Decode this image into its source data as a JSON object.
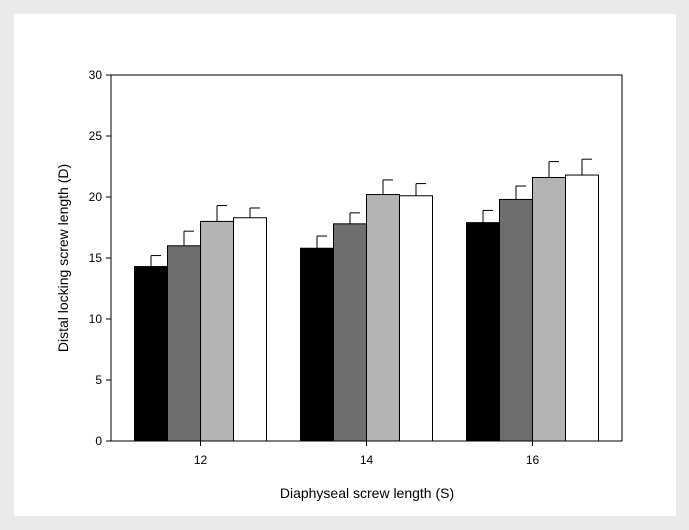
{
  "chart_data": {
    "type": "bar",
    "title": "",
    "xlabel": "Diaphyseal screw length (S)",
    "ylabel": "Distal locking screw length (D)",
    "categories": [
      "12",
      "14",
      "16"
    ],
    "ylim": [
      0,
      30
    ],
    "yticks": [
      0,
      5,
      10,
      15,
      20,
      25,
      30
    ],
    "legend": false,
    "grid": false,
    "series": [
      {
        "color": "#000000",
        "values": [
          14.3,
          15.8,
          17.9
        ],
        "errors": [
          0.9,
          1.0,
          1.0
        ]
      },
      {
        "color": "#6e6e6e",
        "values": [
          16.0,
          17.8,
          19.8
        ],
        "errors": [
          1.2,
          0.9,
          1.1
        ]
      },
      {
        "color": "#b4b4b4",
        "values": [
          18.0,
          20.2,
          21.6
        ],
        "errors": [
          1.3,
          1.2,
          1.3
        ]
      },
      {
        "color": "#ffffff",
        "values": [
          18.3,
          20.1,
          21.8
        ],
        "errors": [
          0.8,
          1.0,
          1.3
        ]
      }
    ]
  }
}
